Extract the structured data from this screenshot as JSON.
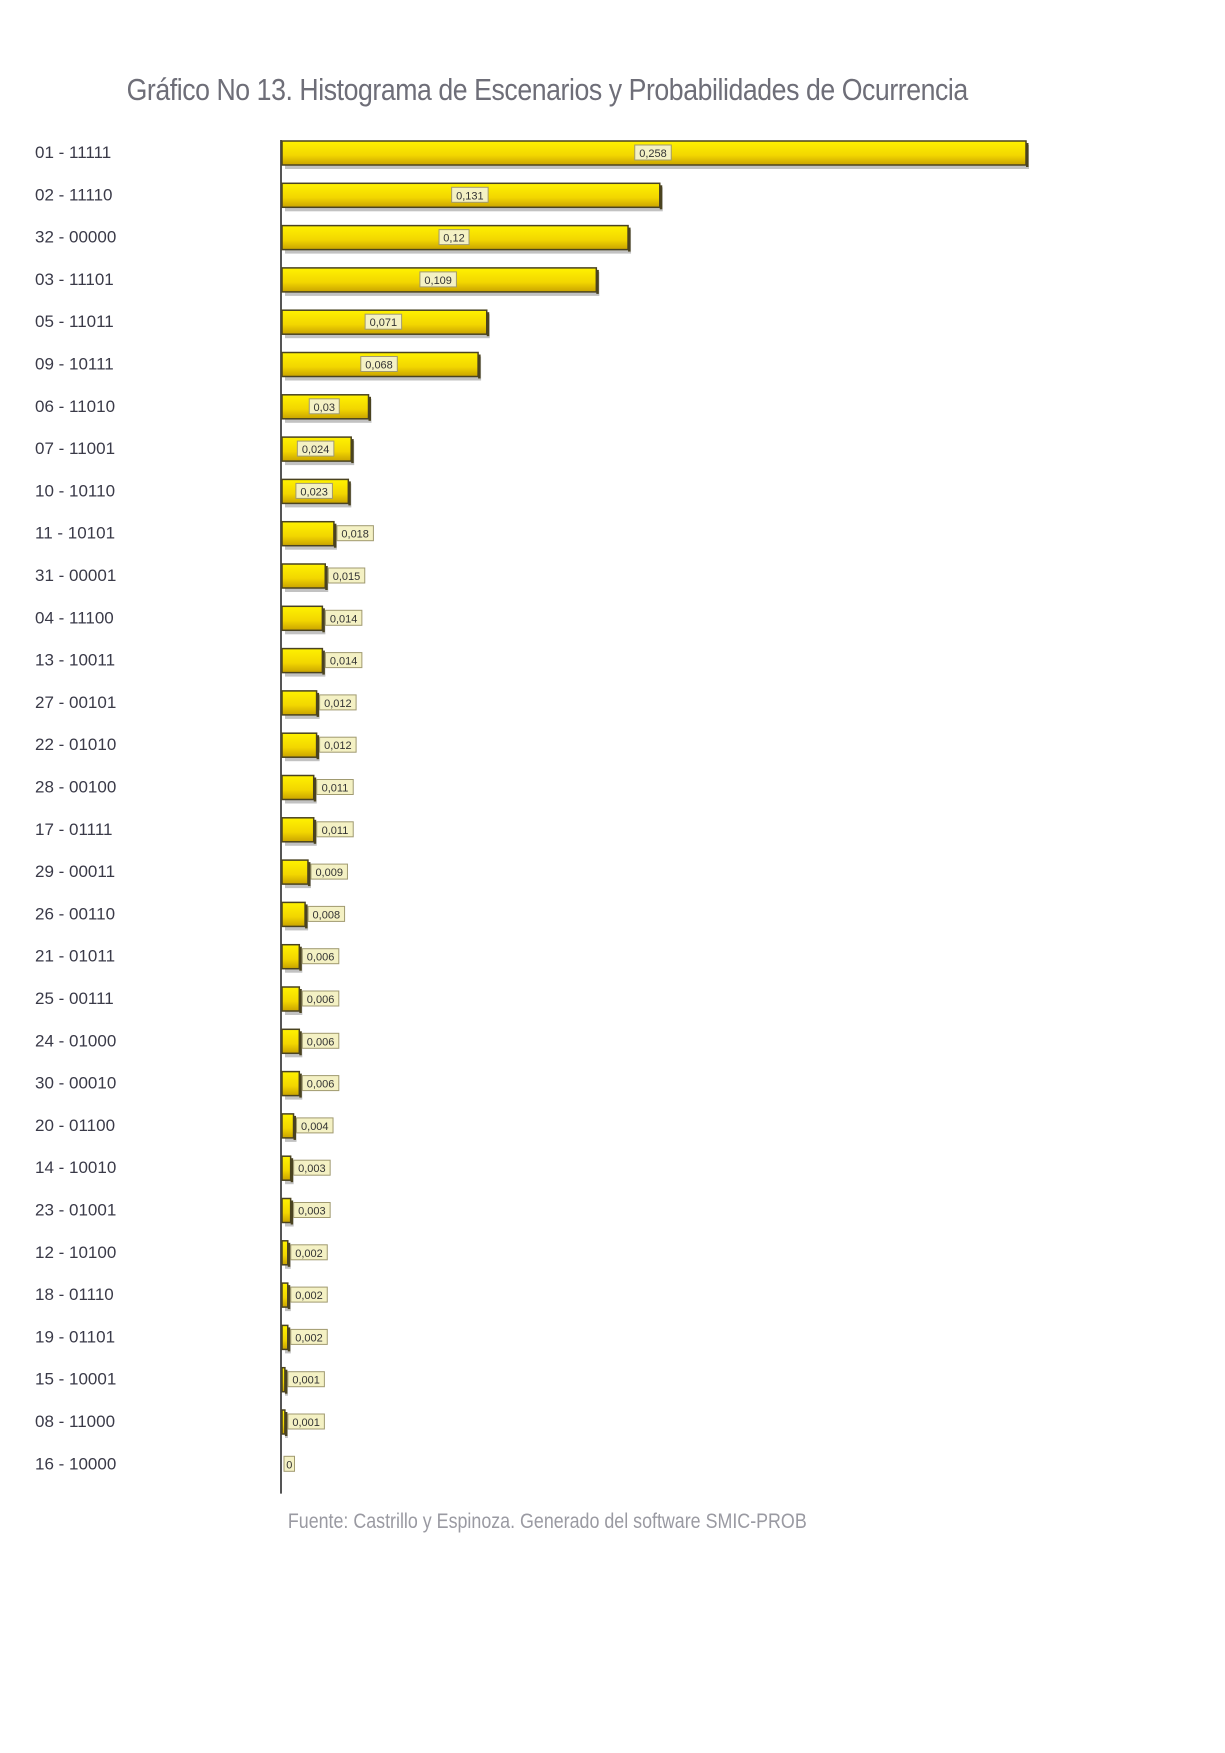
{
  "chart_data": {
    "type": "bar",
    "orientation": "horizontal",
    "title": "Gráfico  No 13. Histograma de Escenarios y Probabilidades de Ocurrencia",
    "categories": [
      "01 - 11111",
      "02 - 11110",
      "32 - 00000",
      "03 - 11101",
      "05 - 11011",
      "09 - 10111",
      "06 - 11010",
      "07 - 11001",
      "10 - 10110",
      "11 - 10101",
      "31 - 00001",
      "04 - 11100",
      "13 - 10011",
      "27 - 00101",
      "22 - 01010",
      "28 - 00100",
      "17 - 01111",
      "29 - 00011",
      "26 - 00110",
      "21 - 01011",
      "25 - 00111",
      "24 - 01000",
      "30 - 00010",
      "20 - 01100",
      "14 - 10010",
      "23 - 01001",
      "12 - 10100",
      "18 - 01110",
      "19 - 01101",
      "15 - 10001",
      "08 - 11000",
      "16 - 10000"
    ],
    "values": [
      0.258,
      0.131,
      0.12,
      0.109,
      0.071,
      0.068,
      0.03,
      0.024,
      0.023,
      0.018,
      0.015,
      0.014,
      0.014,
      0.012,
      0.012,
      0.011,
      0.011,
      0.009,
      0.008,
      0.006,
      0.006,
      0.006,
      0.006,
      0.004,
      0.003,
      0.003,
      0.002,
      0.002,
      0.002,
      0.001,
      0.001,
      0
    ],
    "value_labels": [
      "0,258",
      "0,131",
      "0,12",
      "0,109",
      "0,071",
      "0,068",
      "0,03",
      "0,024",
      "0,023",
      "0,018",
      "0,015",
      "0,014",
      "0,014",
      "0,012",
      "0,012",
      "0,011",
      "0,011",
      "0,009",
      "0,008",
      "0,006",
      "0,006",
      "0,006",
      "0,006",
      "0,004",
      "0,003",
      "0,003",
      "0,002",
      "0,002",
      "0,002",
      "0,001",
      "0,001",
      "0"
    ],
    "xlim": [
      0,
      0.258
    ],
    "grid": false,
    "legend": "none",
    "colors": {
      "bar": "#f2d600",
      "bar_light": "#fff200",
      "bar_dark": "#c9a300",
      "shadow": "#4a4320",
      "label_bg": "#f4f1c4"
    }
  },
  "footer": "Fuente: Castrillo y Espinoza.  Generado del software SMIC-PROB"
}
